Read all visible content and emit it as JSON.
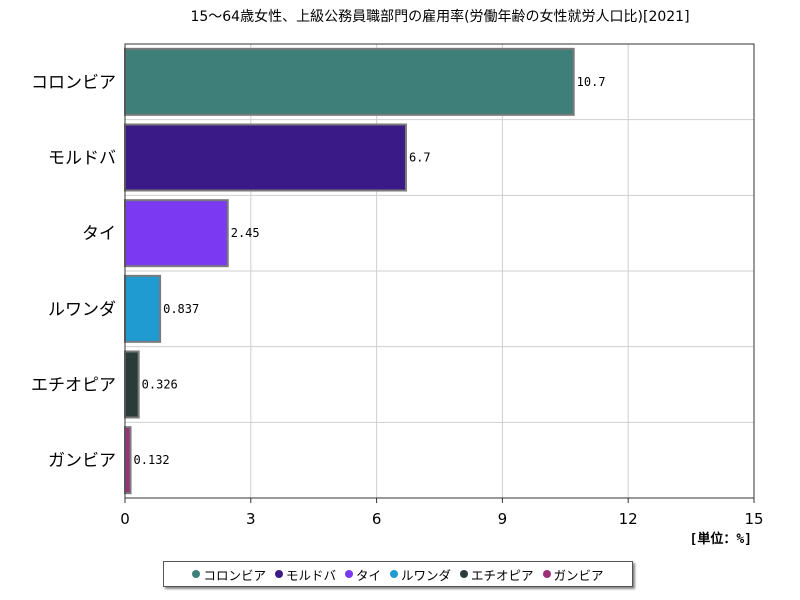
{
  "chart_data": {
    "type": "bar",
    "orientation": "horizontal",
    "title": "15～64歳女性、上級公務員職部門の雇用率(労働年齢の女性就労人口比)[2021]",
    "unit_label": "[単位：%]",
    "categories": [
      "コロンビア",
      "モルドバ",
      "タイ",
      "ルワンダ",
      "エチオピア",
      "ガンビア"
    ],
    "values": [
      10.7,
      6.7,
      2.45,
      0.837,
      0.326,
      0.132
    ],
    "value_labels": [
      "10.7",
      "6.7",
      "2.45",
      "0.837",
      "0.326",
      "0.132"
    ],
    "colors": [
      "#3f7f7a",
      "#3a1a86",
      "#7b3af2",
      "#1f9bd2",
      "#2b3b3a",
      "#9b2f78"
    ],
    "xlim": [
      0,
      15
    ],
    "xticks": [
      0,
      3,
      6,
      9,
      12,
      15
    ],
    "xtick_labels": [
      "0",
      "3",
      "6",
      "9",
      "12",
      "15"
    ],
    "grid": true,
    "legend_position": "bottom"
  }
}
